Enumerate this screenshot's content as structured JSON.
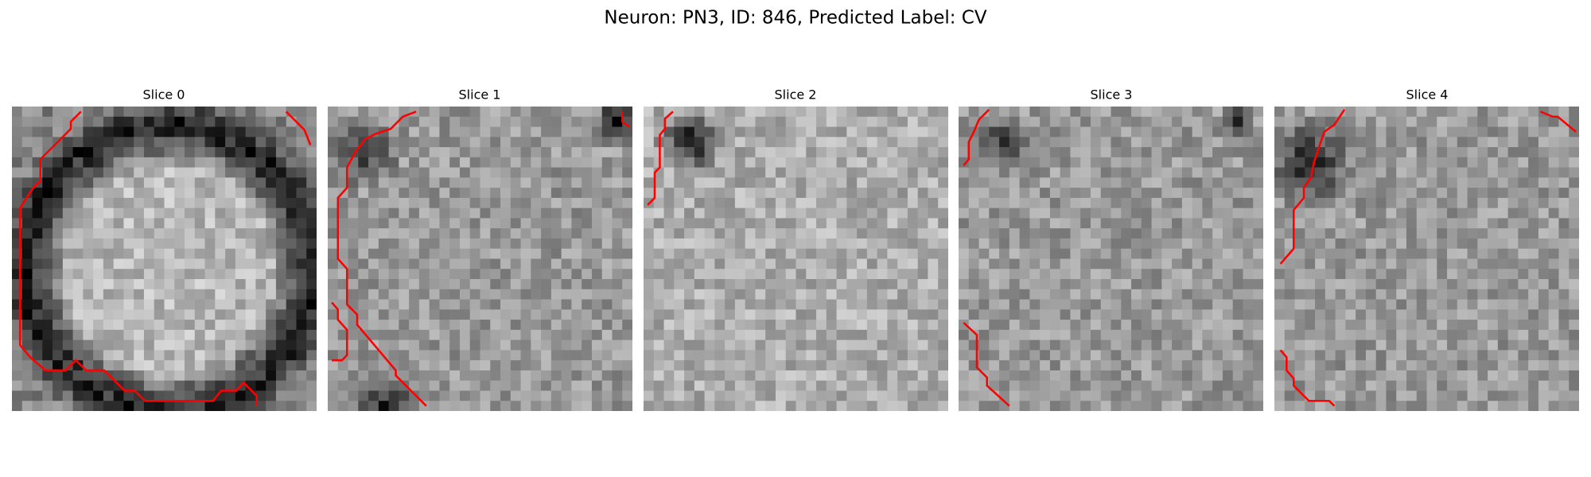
{
  "header": {
    "title": "Neuron: PN3, ID: 846, Predicted Label: CV"
  },
  "panels": [
    {
      "title": "Slice 0"
    },
    {
      "title": "Slice 1"
    },
    {
      "title": "Slice 2"
    },
    {
      "title": "Slice 3"
    },
    {
      "title": "Slice 4"
    }
  ]
}
